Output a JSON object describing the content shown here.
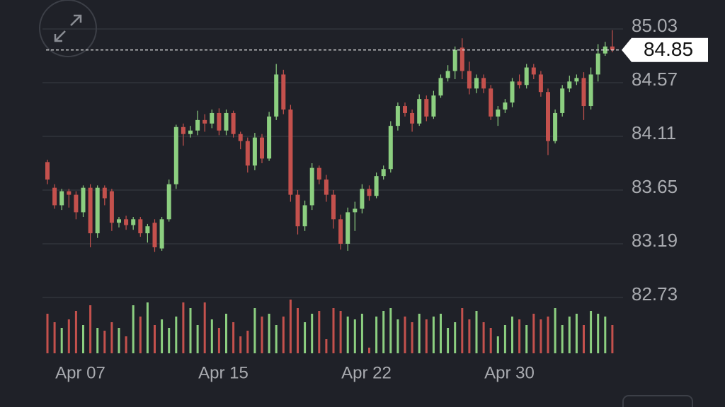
{
  "chart_data": {
    "type": "candlestick",
    "categories": [
      null,
      null,
      null,
      null,
      null,
      "Apr 07",
      null,
      null,
      null,
      null,
      null,
      null,
      null,
      null,
      null,
      null,
      null,
      null,
      null,
      null,
      null,
      null,
      null,
      null,
      null,
      "Apr 15",
      null,
      null,
      null,
      null,
      null,
      null,
      null,
      null,
      null,
      null,
      null,
      null,
      null,
      null,
      null,
      null,
      null,
      null,
      null,
      "Apr 22",
      null,
      null,
      null,
      null,
      null,
      null,
      null,
      null,
      null,
      null,
      null,
      null,
      null,
      null,
      null,
      null,
      null,
      null,
      null,
      "Apr 30",
      null,
      null,
      null,
      null,
      null,
      null,
      null,
      null,
      null,
      null,
      null,
      null,
      null,
      null
    ],
    "open": [
      83.89,
      83.67,
      83.52,
      83.64,
      83.61,
      83.46,
      83.67,
      83.28,
      83.67,
      83.64,
      83.37,
      83.4,
      83.35,
      83.4,
      83.28,
      83.37,
      83.15,
      83.4,
      83.7,
      84.19,
      84.13,
      84.16,
      84.25,
      84.22,
      84.31,
      84.16,
      84.31,
      84.13,
      84.07,
      83.86,
      84.1,
      83.92,
      84.28,
      84.64,
      84.34,
      83.61,
      83.34,
      83.52,
      83.84,
      83.74,
      83.61,
      83.4,
      83.19,
      83.46,
      83.49,
      83.66,
      83.6,
      83.77,
      83.83,
      84.2,
      84.37,
      84.31,
      84.22,
      84.43,
      84.28,
      84.46,
      84.61,
      84.67,
      84.87,
      84.67,
      84.52,
      84.61,
      84.52,
      84.28,
      84.34,
      84.4,
      84.58,
      84.55,
      84.7,
      84.64,
      84.49,
      84.07,
      84.31,
      84.52,
      84.58,
      84.61,
      84.37,
      84.64,
      84.82,
      84.88
    ],
    "high": [
      83.91,
      83.7,
      83.66,
      83.66,
      83.64,
      83.69,
      83.7,
      83.69,
      83.69,
      83.66,
      83.42,
      83.43,
      83.42,
      83.42,
      83.36,
      83.4,
      83.42,
      83.74,
      84.21,
      84.22,
      84.2,
      84.33,
      84.3,
      84.34,
      84.35,
      84.34,
      84.33,
      84.15,
      84.1,
      84.14,
      84.13,
      84.32,
      84.73,
      84.68,
      84.38,
      83.65,
      83.56,
      83.88,
      83.86,
      83.78,
      83.65,
      83.44,
      83.5,
      83.55,
      83.7,
      83.69,
      83.8,
      83.86,
      84.24,
      84.4,
      84.4,
      84.34,
      84.47,
      84.46,
      84.5,
      84.64,
      84.72,
      84.88,
      84.95,
      84.75,
      84.64,
      84.64,
      84.55,
      84.37,
      84.43,
      84.61,
      84.64,
      84.73,
      84.73,
      84.67,
      84.52,
      84.34,
      84.55,
      84.63,
      84.64,
      84.66,
      84.7,
      84.9,
      84.92,
      85.02
    ],
    "low": [
      83.7,
      83.49,
      83.48,
      83.5,
      83.4,
      83.42,
      83.16,
      83.24,
      83.52,
      83.3,
      83.33,
      83.31,
      83.31,
      83.25,
      83.2,
      83.12,
      83.13,
      83.38,
      83.66,
      84.03,
      84.1,
      84.12,
      84.15,
      84.18,
      84.12,
      84.12,
      84.1,
      84.0,
      83.8,
      83.82,
      83.88,
      83.9,
      84.25,
      84.3,
      83.55,
      83.27,
      83.3,
      83.48,
      83.7,
      83.55,
      83.32,
      83.14,
      83.13,
      83.3,
      83.45,
      83.56,
      83.58,
      83.74,
      83.8,
      84.16,
      84.28,
      84.15,
      84.2,
      84.24,
      84.26,
      84.44,
      84.58,
      84.6,
      84.6,
      84.47,
      84.48,
      84.48,
      84.25,
      84.2,
      84.31,
      84.36,
      84.52,
      84.52,
      84.6,
      84.45,
      83.95,
      84.05,
      84.28,
      84.49,
      84.55,
      84.25,
      84.34,
      84.58,
      84.8,
      84.83
    ],
    "close": [
      83.74,
      83.52,
      83.64,
      83.61,
      83.46,
      83.67,
      83.28,
      83.67,
      83.58,
      83.37,
      83.4,
      83.35,
      83.4,
      83.28,
      83.34,
      83.16,
      83.4,
      83.7,
      84.19,
      84.13,
      84.16,
      84.25,
      84.22,
      84.31,
      84.16,
      84.31,
      84.13,
      84.07,
      83.86,
      84.1,
      83.92,
      84.28,
      84.64,
      84.34,
      83.61,
      83.34,
      83.52,
      83.84,
      83.74,
      83.61,
      83.4,
      83.19,
      83.46,
      83.49,
      83.66,
      83.6,
      83.77,
      83.83,
      84.2,
      84.37,
      84.31,
      84.22,
      84.43,
      84.28,
      84.46,
      84.61,
      84.67,
      84.85,
      84.67,
      84.52,
      84.61,
      84.52,
      84.28,
      84.34,
      84.4,
      84.58,
      84.55,
      84.7,
      84.64,
      84.49,
      84.07,
      84.31,
      84.52,
      84.58,
      84.61,
      84.37,
      84.64,
      84.82,
      84.88,
      84.85
    ],
    "volume": [
      70,
      55,
      45,
      60,
      75,
      50,
      85,
      45,
      40,
      55,
      45,
      30,
      85,
      65,
      90,
      50,
      60,
      45,
      65,
      90,
      80,
      50,
      90,
      60,
      45,
      70,
      55,
      30,
      40,
      80,
      65,
      70,
      50,
      65,
      95,
      80,
      55,
      70,
      75,
      25,
      80,
      75,
      65,
      60,
      70,
      10,
      65,
      75,
      80,
      60,
      65,
      55,
      70,
      60,
      65,
      70,
      45,
      55,
      80,
      60,
      75,
      55,
      45,
      30,
      50,
      65,
      60,
      50,
      70,
      60,
      65,
      80,
      50,
      65,
      70,
      50,
      75,
      70,
      65,
      50
    ],
    "volume_ylim": [
      0,
      100
    ],
    "up_color": "#8ccf80",
    "down_color": "#c4514d",
    "ylim": [
      82.73,
      85.03
    ],
    "yticks": [
      85.03,
      84.57,
      84.11,
      83.65,
      83.19,
      82.73
    ],
    "grid": true,
    "last_price": 84.85
  }
}
